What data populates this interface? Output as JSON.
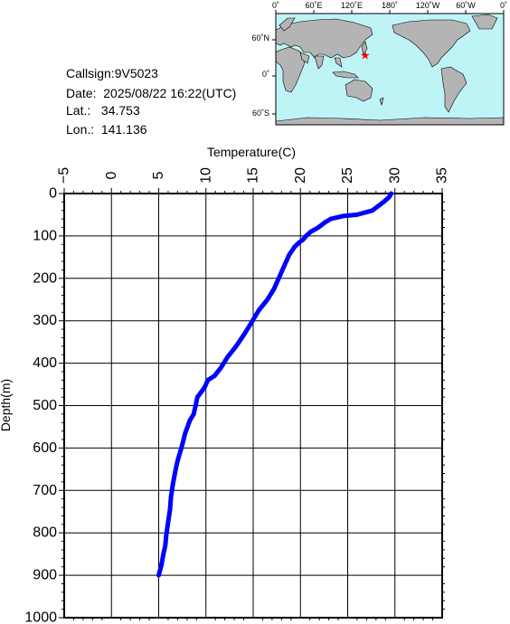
{
  "info": {
    "callsign_label": "Callsign:",
    "callsign": "9V5023",
    "date_label": "Date:",
    "date": "2025/08/22 16:22(UTC)",
    "lat_label": "Lat.:",
    "lat": "34.753",
    "lon_label": "Lon.:",
    "lon": "141.136"
  },
  "map": {
    "lon_ticks": [
      "0˚",
      "60˚E",
      "120˚E",
      "180˚",
      "120˚W",
      "60˚W",
      "0˚"
    ],
    "lat_ticks": [
      "60˚N",
      "0˚",
      "60˚S"
    ],
    "ocean_color": "#bff4f7",
    "land_color": "#b4b4b4",
    "marker_color": "#ff0000",
    "station_lon": 141.136,
    "station_lat": 34.753
  },
  "chart_data": {
    "type": "line",
    "xlabel": "Temperature(C)",
    "ylabel": "Depth(m)",
    "xlim": [
      -5,
      35
    ],
    "ylim": [
      0,
      1000
    ],
    "x_ticks": [
      "-5",
      "0",
      "5",
      "10",
      "15",
      "20",
      "25",
      "30",
      "35"
    ],
    "y_ticks": [
      "0",
      "100",
      "200",
      "300",
      "400",
      "500",
      "600",
      "700",
      "800",
      "900",
      "1000"
    ],
    "grid": true,
    "series_color": "#0000ff",
    "series": [
      {
        "temperature": [
          29.6,
          29.4,
          28.8,
          27.6,
          26.0,
          24.5,
          23.2,
          22.6,
          21.9,
          21.1,
          20.6,
          20.3,
          19.9,
          19.4,
          18.8,
          18.2,
          17.7,
          17.2,
          16.5,
          15.6,
          14.8,
          14.1,
          13.2,
          12.3,
          11.6,
          10.9,
          10.2,
          9.9,
          9.6,
          9.1,
          8.9,
          8.7,
          8.3,
          7.8,
          7.4,
          7.0,
          6.8,
          6.5,
          6.3,
          6.2,
          6.0,
          5.8,
          5.7,
          5.5,
          5.3,
          5.0
        ],
        "depth": [
          0,
          8,
          20,
          40,
          50,
          53,
          60,
          68,
          80,
          90,
          100,
          108,
          115,
          125,
          145,
          175,
          200,
          225,
          250,
          275,
          305,
          330,
          360,
          385,
          410,
          430,
          440,
          455,
          465,
          480,
          500,
          520,
          535,
          565,
          600,
          630,
          650,
          685,
          715,
          745,
          775,
          805,
          830,
          850,
          875,
          900
        ]
      }
    ]
  }
}
